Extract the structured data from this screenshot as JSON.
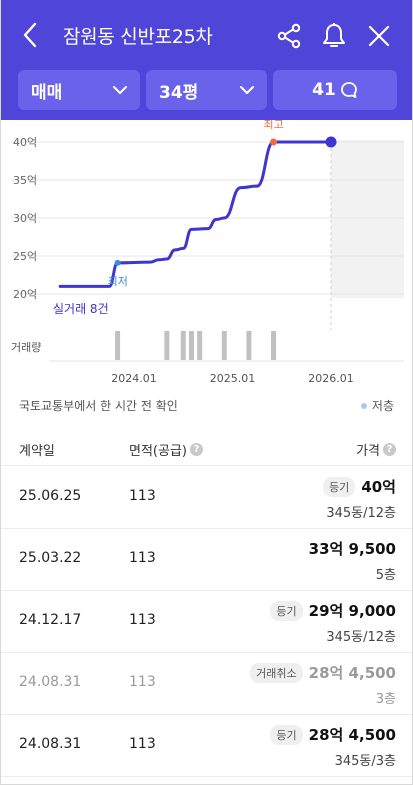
{
  "header": {
    "title": "잠원동 신반포25차",
    "filters": {
      "trade_type": "매매",
      "size": "34평",
      "comment_count": "41"
    },
    "accent": "#4f45d9"
  },
  "chart_data": {
    "type": "line",
    "y_tick_labels": [
      "40억",
      "35억",
      "30억",
      "25억",
      "20억"
    ],
    "x_tick_labels": [
      "2024.01",
      "2025.01",
      "2026.01"
    ],
    "volume_label": "거래량",
    "deal_count_label": "실거래 8건",
    "high_label": "최고",
    "low_label": "최저",
    "ylim_eok": [
      20,
      40
    ],
    "series": [
      {
        "values_eok": [
          {
            "date": "2023-04",
            "v": 21.0
          },
          {
            "date": "2023-10",
            "v": 21.0
          },
          {
            "date": "2023-11",
            "v": 24.1
          },
          {
            "date": "2024-03",
            "v": 24.2
          },
          {
            "date": "2024-04",
            "v": 24.5
          },
          {
            "date": "2024-05",
            "v": 24.6
          },
          {
            "date": "2024-06",
            "v": 25.8
          },
          {
            "date": "2024-07",
            "v": 26.0
          },
          {
            "date": "2024-08",
            "v": 28.5
          },
          {
            "date": "2024-10",
            "v": 28.6
          },
          {
            "date": "2024-11",
            "v": 29.8
          },
          {
            "date": "2024-12",
            "v": 30.0
          },
          {
            "date": "2025-02",
            "v": 34.0
          },
          {
            "date": "2025-04",
            "v": 34.2
          },
          {
            "date": "2025-06",
            "v": 40.0
          },
          {
            "date": "2026-01",
            "v": 40.0
          }
        ]
      }
    ],
    "volume_bars": [
      "2023-11",
      "2024-05",
      "2024-07",
      "2024-08",
      "2024-09",
      "2024-12",
      "2025-03",
      "2025-06"
    ],
    "line_color": "#3f35cf",
    "high_color": "#f26b3a",
    "low_color": "#3b8de0"
  },
  "source_text": "국토교통부에서 한 시간 전 확인",
  "legend_low": "저층",
  "table": {
    "headers": {
      "date": "계약일",
      "area": "면적(공급)",
      "price": "가격"
    },
    "rows": [
      {
        "date": "25.06.25",
        "area": "113",
        "badge": "등기",
        "price": "40억",
        "floor": "345동/12층",
        "cancelled": false
      },
      {
        "date": "25.03.22",
        "area": "113",
        "badge": "",
        "price": "33억 9,500",
        "floor": "5층",
        "cancelled": false
      },
      {
        "date": "24.12.17",
        "area": "113",
        "badge": "등기",
        "price": "29억 9,000",
        "floor": "345동/12층",
        "cancelled": false
      },
      {
        "date": "24.08.31",
        "area": "113",
        "badge": "거래취소",
        "price": "28억 4,500",
        "floor": "3층",
        "cancelled": true
      },
      {
        "date": "24.08.31",
        "area": "113",
        "badge": "등기",
        "price": "28억 4,500",
        "floor": "345동/3층",
        "cancelled": false
      }
    ]
  }
}
